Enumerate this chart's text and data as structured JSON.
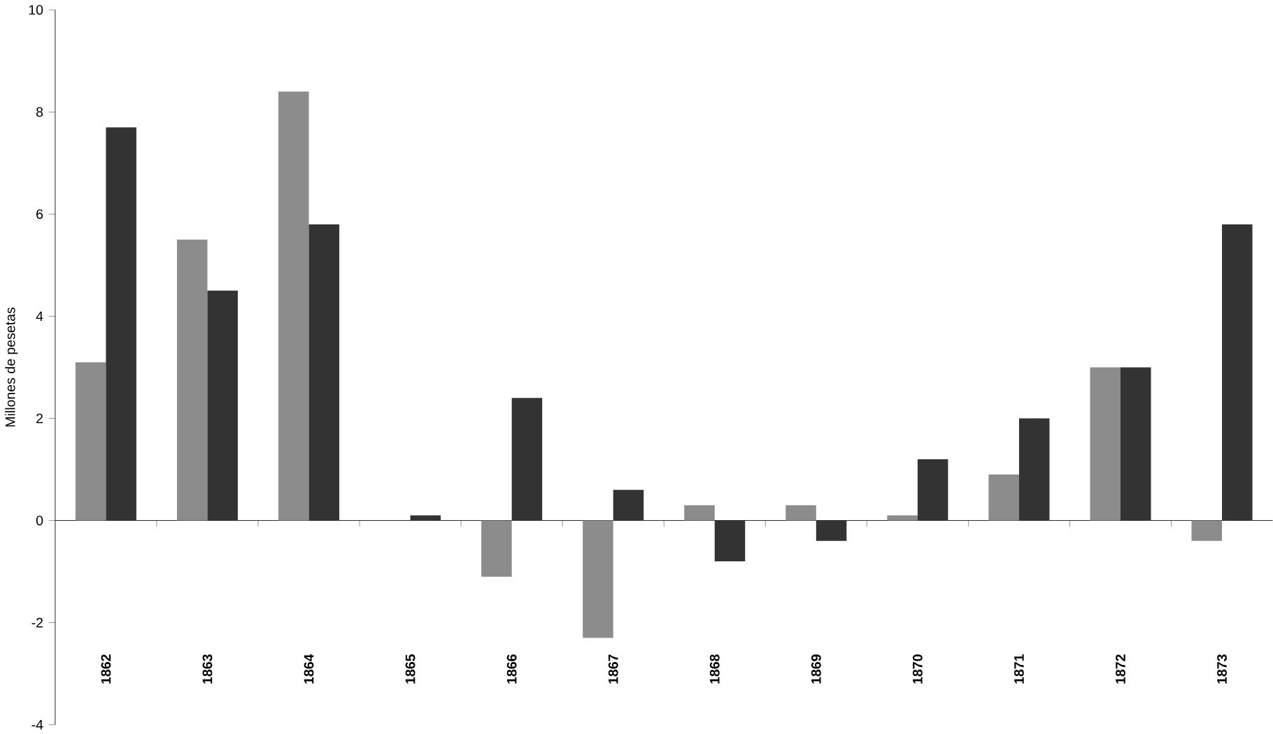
{
  "chart_data": {
    "type": "bar",
    "ylabel": "Millones de pesetas",
    "categories": [
      "1862",
      "1863",
      "1864",
      "1865",
      "1866",
      "1867",
      "1868",
      "1869",
      "1870",
      "1871",
      "1872",
      "1873"
    ],
    "series": [
      {
        "color": "#8c8c8c",
        "values": [
          3.1,
          5.5,
          8.4,
          0,
          -1.1,
          -2.3,
          0.3,
          0.3,
          0.1,
          0.9,
          3.0,
          -0.4
        ]
      },
      {
        "color": "#333333",
        "values": [
          7.7,
          4.5,
          5.8,
          0.1,
          2.4,
          0.6,
          -0.8,
          -0.4,
          1.2,
          2.0,
          3.0,
          5.8
        ]
      }
    ],
    "ylim": [
      -4,
      10
    ],
    "yticks": [
      -4,
      -2,
      0,
      2,
      4,
      6,
      8,
      10
    ]
  }
}
